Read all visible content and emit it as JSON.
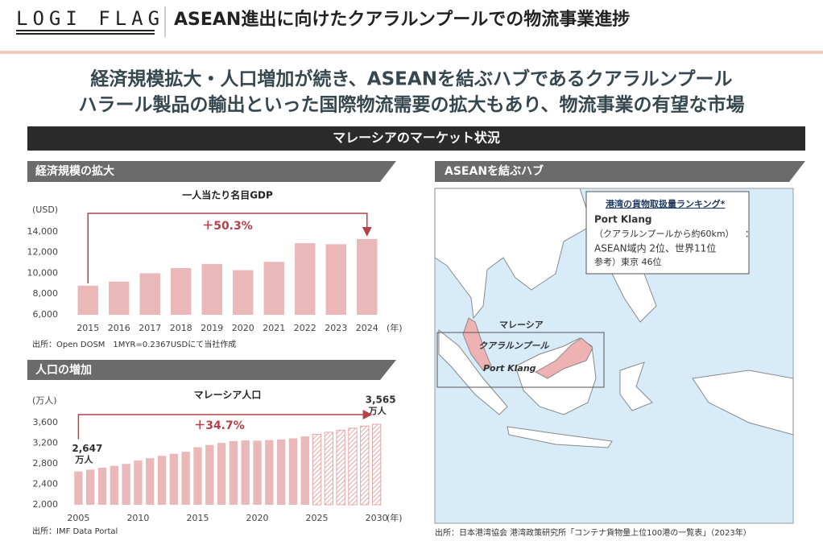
{
  "header": {
    "logo": "LOGI FLAG",
    "title": "ASEAN進出に向けたクアラルンプールでの物流事業進捗"
  },
  "headline": [
    "経済規模拡大・人口増加が続き、ASEANを結ぶハブであるクアラルンプール",
    "ハラール製品の輸出といった国際物流需要の拡大もあり、物流事業の有望な市場"
  ],
  "band": "マレーシアのマーケット状況",
  "sections": [
    "経済規模の拡大",
    "人口の増加",
    "ASEANを結ぶハブ"
  ],
  "chart_data": [
    {
      "type": "bar",
      "title": "一人当たり名目GDP",
      "y_unit": "(USD)",
      "x_unit": "(年)",
      "categories": [
        "2015",
        "2016",
        "2017",
        "2018",
        "2019",
        "2020",
        "2021",
        "2022",
        "2023",
        "2024"
      ],
      "values": [
        8800,
        9200,
        10000,
        10500,
        10900,
        10300,
        11100,
        12900,
        12800,
        13300
      ],
      "color": "#eab8b8",
      "ylim": [
        6000,
        15000
      ],
      "yticks": [
        {
          "value": 6000,
          "label": "6,000"
        },
        {
          "value": 8000,
          "label": "8,000"
        },
        {
          "value": 10000,
          "label": "10,000"
        },
        {
          "value": 12000,
          "label": "12,000"
        },
        {
          "value": 14000,
          "label": "14,000"
        }
      ],
      "annotation": "＋50.3%",
      "source": "出所：Open DOSM　1MYR=0.2367USDにて当社作成"
    },
    {
      "type": "bar",
      "title": "マレーシア人口",
      "y_unit": "(万人)",
      "x_unit": "(年)",
      "categories": [
        "2005",
        null,
        null,
        null,
        null,
        "2010",
        null,
        null,
        null,
        null,
        "2015",
        null,
        null,
        null,
        null,
        "2020",
        null,
        null,
        null,
        null,
        "2025",
        null,
        null,
        null,
        null,
        "2030"
      ],
      "values": [
        2647,
        2683,
        2720,
        2757,
        2795,
        2859,
        2906,
        2951,
        2992,
        3030,
        3119,
        3163,
        3202,
        3238,
        3252,
        3245,
        3258,
        3270,
        3290,
        3330,
        3370,
        3410,
        3450,
        3490,
        3530,
        3565
      ],
      "value_labels": [
        "2,647",
        null,
        null,
        null,
        null,
        null,
        null,
        null,
        null,
        null,
        null,
        null,
        null,
        null,
        null,
        null,
        null,
        null,
        null,
        null,
        null,
        null,
        null,
        null,
        null,
        "3,565"
      ],
      "value_label_unit": "万人",
      "forecast_start": 2025,
      "color": "#eab8b8",
      "ylim": [
        2000,
        3800
      ],
      "yticks": [
        {
          "value": 2000,
          "label": "2,000"
        },
        {
          "value": 2400,
          "label": "2,400"
        },
        {
          "value": 2800,
          "label": "2,800"
        },
        {
          "value": 3200,
          "label": "3,200"
        },
        {
          "value": 3600,
          "label": "3,600"
        }
      ],
      "annotation": "＋34.7%",
      "source": "出所：IMF Data Portal"
    }
  ],
  "map": {
    "box_title": "港湾の貨物取扱量ランキング*",
    "port": "Port Klang",
    "port_note": "（クアラルンプールから約60km）",
    "colon": "：",
    "rank": "ASEAN域内 2位、世界11位",
    "reference": "参考）東京 46位",
    "country": "マレーシア",
    "city": "クアラルンプール",
    "port_label": "Port Klang",
    "source": "出所：日本港湾協会 港湾政策研究所「コンテナ貨物量上位100港の一覧表」（2023年）"
  }
}
